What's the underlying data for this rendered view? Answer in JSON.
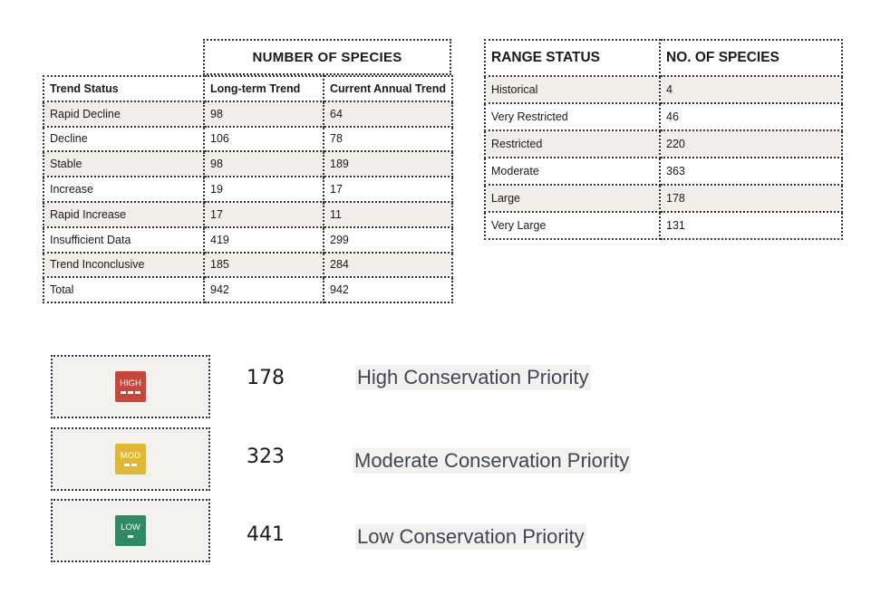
{
  "trend_table": {
    "group_header": "NUMBER OF SPECIES",
    "columns": [
      "Trend Status",
      "Long-term Trend",
      "Current Annual Trend"
    ],
    "rows": [
      [
        "Rapid Decline",
        "98",
        "64"
      ],
      [
        "Decline",
        "106",
        "78"
      ],
      [
        "Stable",
        "98",
        "189"
      ],
      [
        "Increase",
        "19",
        "17"
      ],
      [
        "Rapid Increase",
        "17",
        "11"
      ],
      [
        "Insufficient Data",
        "419",
        "299"
      ],
      [
        "Trend Inconclusive",
        "185",
        "284"
      ],
      [
        "Total",
        "942",
        "942"
      ]
    ]
  },
  "range_table": {
    "columns": [
      "RANGE STATUS",
      "NO. OF SPECIES"
    ],
    "rows": [
      [
        "Historical",
        "4"
      ],
      [
        "Very Restricted",
        "46"
      ],
      [
        "Restricted",
        "220"
      ],
      [
        "Moderate",
        "363"
      ],
      [
        "Large",
        "178"
      ],
      [
        "Very Large",
        "131"
      ]
    ]
  },
  "priorities": [
    {
      "badge": "HIGH",
      "color": "#c8473a",
      "bars": 3,
      "count": "178",
      "label": "High Conservation Priority"
    },
    {
      "badge": "MOD",
      "color": "#e2b731",
      "bars": 2,
      "count": "323",
      "label": "Moderate Conservation Priority"
    },
    {
      "badge": "LOW",
      "color": "#2e8a62",
      "bars": 1,
      "count": "441",
      "label": "Low Conservation Priority"
    }
  ]
}
